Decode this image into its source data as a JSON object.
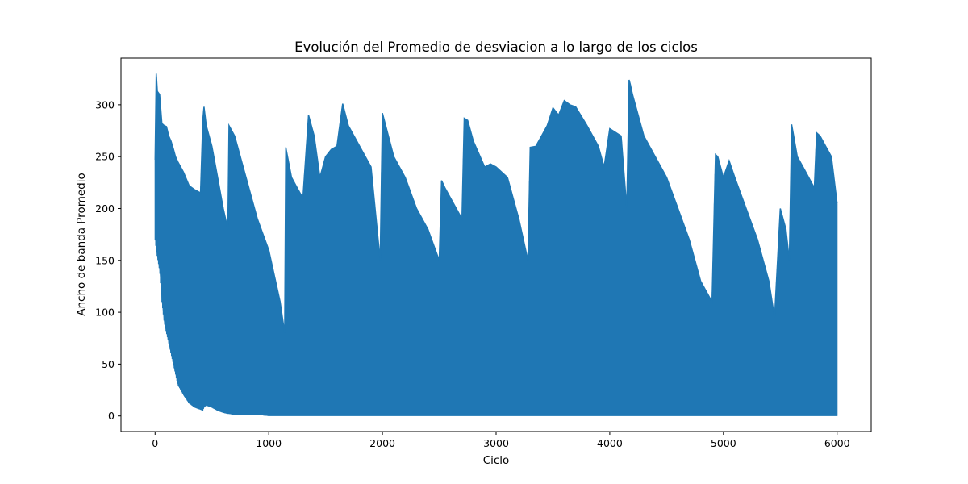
{
  "chart_data": {
    "type": "line",
    "title": "Evolución del Promedio de desviacion a lo largo de los ciclos",
    "xlabel": "Ciclo",
    "ylabel": "Ancho de banda Promedio",
    "xlim": [
      -300,
      6300
    ],
    "ylim": [
      -15,
      345
    ],
    "xticks": [
      0,
      1000,
      2000,
      3000,
      4000,
      5000,
      6000
    ],
    "yticks": [
      0,
      50,
      100,
      150,
      200,
      250,
      300
    ],
    "grid": false,
    "legend": "none",
    "series": [
      {
        "color": "#1f77b4",
        "x": [
          0,
          10,
          20,
          40,
          60,
          80,
          100,
          120,
          140,
          160,
          180,
          200,
          250,
          300,
          350,
          400,
          420,
          430,
          450,
          500,
          550,
          600,
          640,
          650,
          700,
          800,
          900,
          1000,
          1100,
          1140,
          1150,
          1200,
          1250,
          1300,
          1350,
          1400,
          1450,
          1500,
          1550,
          1600,
          1650,
          1700,
          1800,
          1900,
          1980,
          2000,
          2100,
          2200,
          2300,
          2400,
          2500,
          2520,
          2550,
          2600,
          2650,
          2700,
          2720,
          2750,
          2800,
          2900,
          2950,
          3000,
          3100,
          3200,
          3280,
          3300,
          3350,
          3400,
          3450,
          3500,
          3550,
          3600,
          3650,
          3700,
          3800,
          3900,
          3950,
          4000,
          4100,
          4150,
          4170,
          4180,
          4200,
          4300,
          4400,
          4500,
          4600,
          4700,
          4800,
          4900,
          4930,
          4950,
          5000,
          5050,
          5100,
          5200,
          5300,
          5400,
          5450,
          5500,
          5550,
          5580,
          5600,
          5650,
          5700,
          5800,
          5820,
          5850,
          5900,
          5950,
          6000
        ],
        "max": [
          247,
          330,
          313,
          310,
          282,
          280,
          279,
          270,
          265,
          258,
          250,
          245,
          235,
          222,
          218,
          215,
          286,
          298,
          280,
          260,
          230,
          200,
          180,
          280,
          270,
          230,
          190,
          160,
          110,
          80,
          259,
          230,
          220,
          210,
          290,
          270,
          230,
          250,
          257,
          260,
          301,
          280,
          260,
          240,
          150,
          292,
          250,
          230,
          200,
          180,
          150,
          227,
          220,
          210,
          200,
          190,
          287,
          285,
          265,
          240,
          243,
          240,
          230,
          190,
          150,
          259,
          260,
          270,
          280,
          297,
          290,
          304,
          300,
          298,
          280,
          260,
          240,
          277,
          270,
          200,
          324,
          320,
          310,
          270,
          250,
          230,
          200,
          170,
          130,
          110,
          252,
          250,
          230,
          246,
          230,
          200,
          170,
          130,
          95,
          200,
          180,
          150,
          281,
          250,
          240,
          220,
          273,
          270,
          260,
          250,
          205
        ],
        "min": [
          170,
          160,
          153,
          140,
          110,
          90,
          80,
          70,
          60,
          50,
          40,
          30,
          20,
          12,
          8,
          6,
          5,
          8,
          10,
          8,
          5,
          3,
          2,
          2,
          1,
          1,
          1,
          0,
          0,
          0,
          0,
          0,
          0,
          0,
          0,
          0,
          0,
          0,
          0,
          0,
          0,
          0,
          0,
          0,
          0,
          0,
          0,
          0,
          0,
          0,
          0,
          0,
          0,
          0,
          0,
          0,
          0,
          0,
          0,
          0,
          0,
          0,
          0,
          0,
          0,
          0,
          0,
          0,
          0,
          0,
          0,
          0,
          0,
          0,
          0,
          0,
          0,
          0,
          0,
          0,
          0,
          0,
          0,
          0,
          0,
          0,
          0,
          0,
          0,
          0,
          0,
          0,
          0,
          0,
          0,
          0,
          0,
          0,
          0,
          0,
          0,
          0,
          0,
          0,
          0,
          0,
          0,
          0,
          0,
          0,
          0
        ]
      }
    ]
  }
}
